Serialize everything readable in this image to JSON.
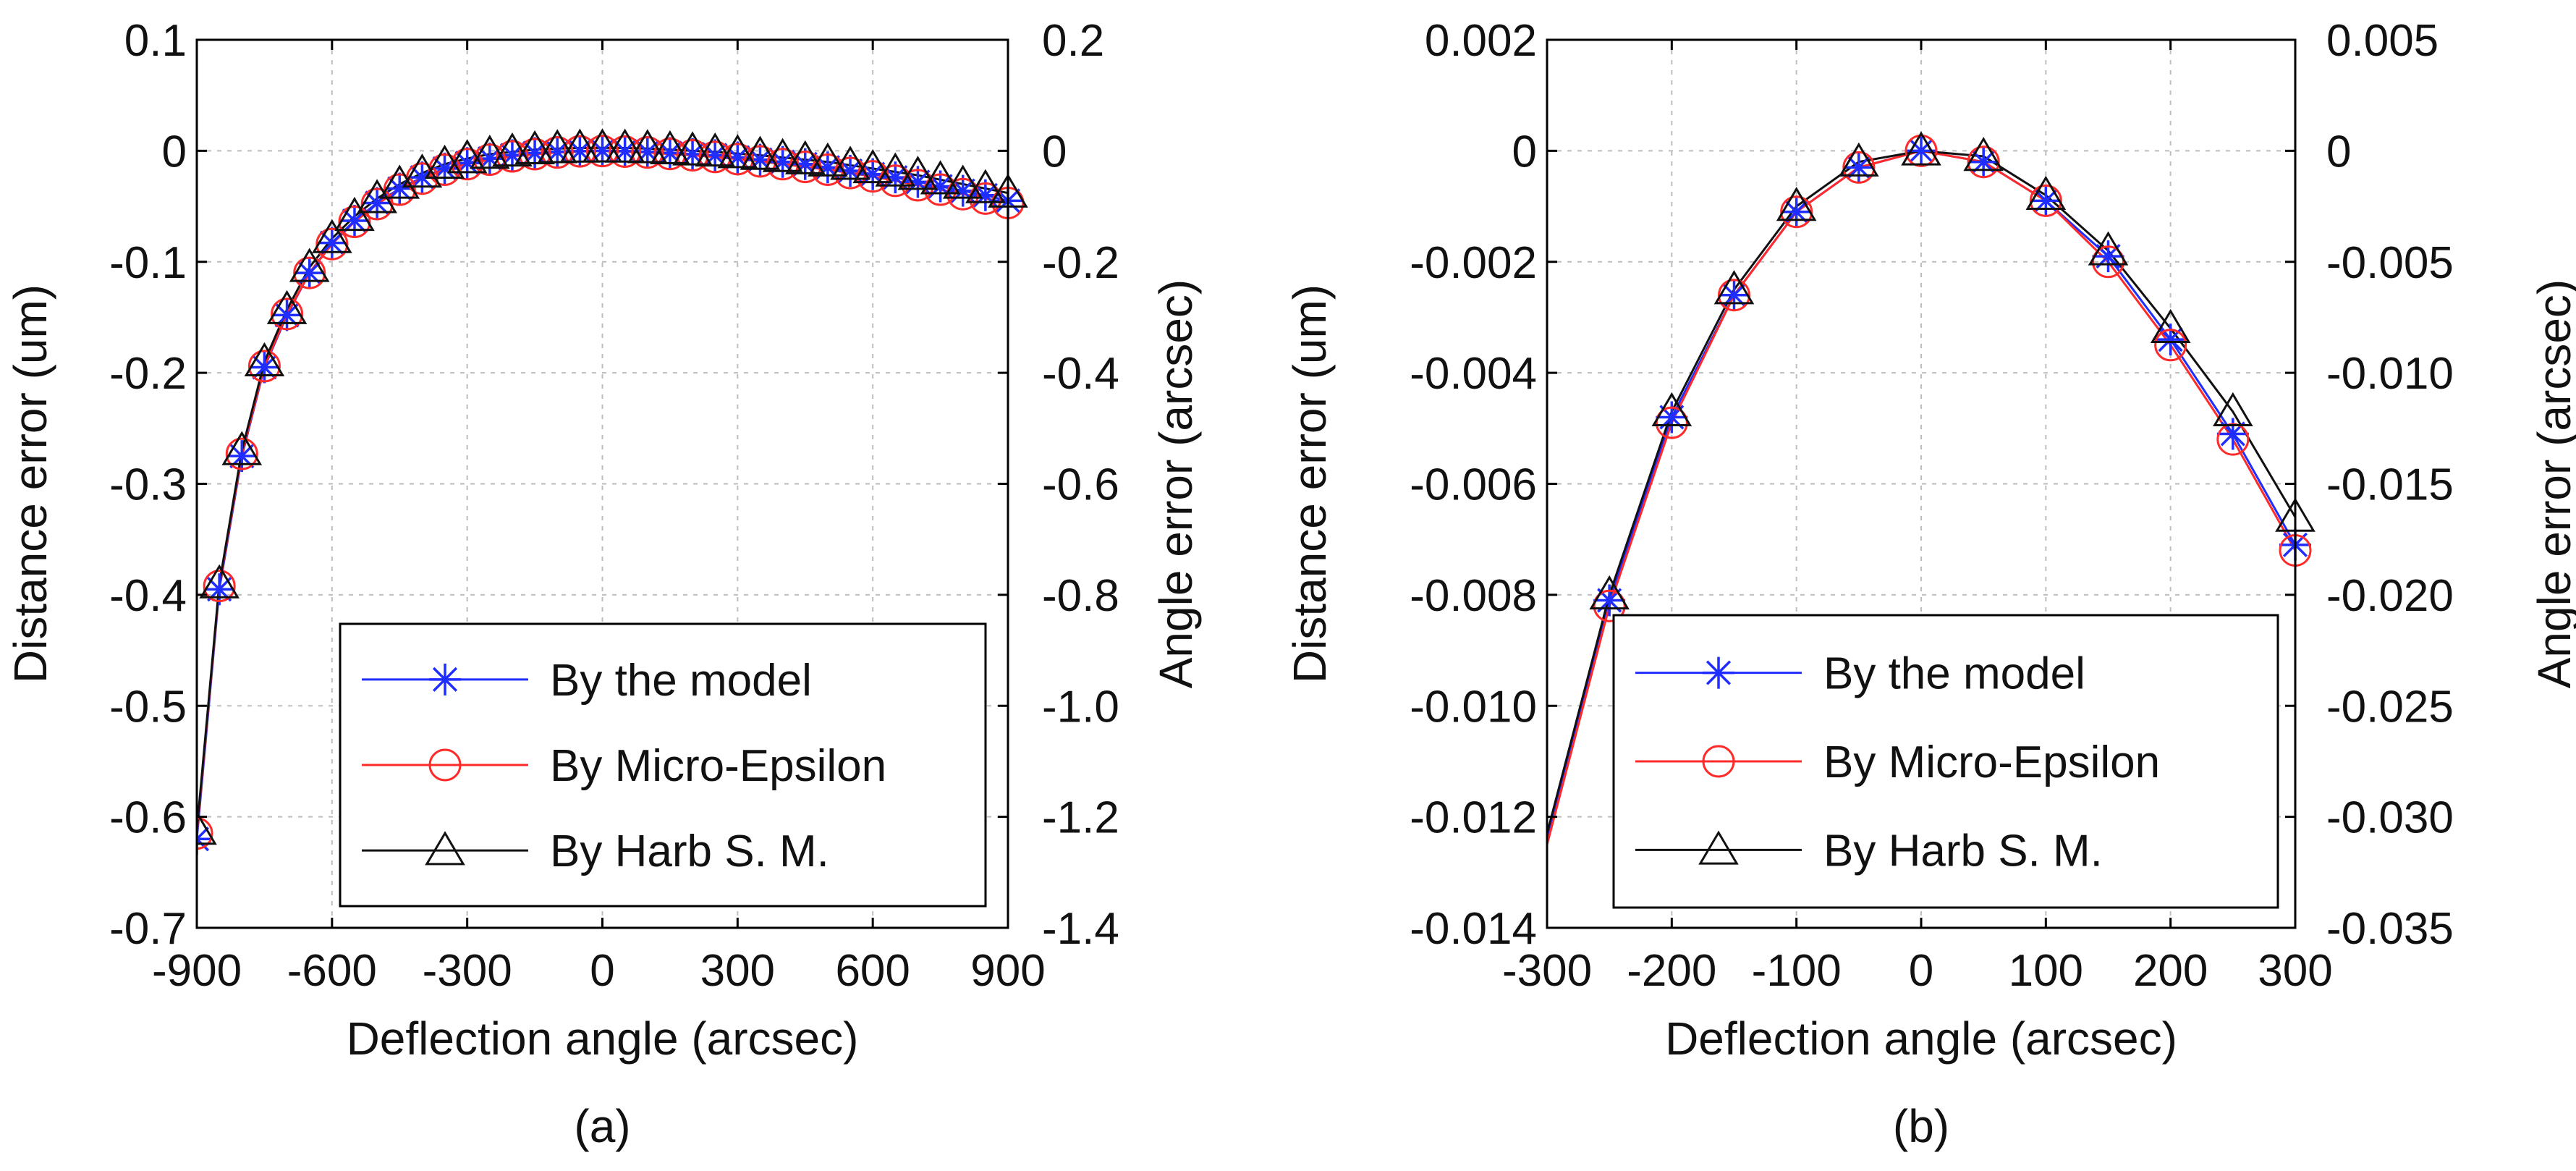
{
  "chart_data": [
    {
      "type": "line",
      "caption": "(a)",
      "xlabel": "Deflection angle (arcsec)",
      "ylabel": "Distance error (um)",
      "y2label": "Angle error (arcsec)",
      "xlim": [
        -900,
        900
      ],
      "ylim": [
        -0.7,
        0.1
      ],
      "y2lim": [
        -1.4,
        0.2
      ],
      "xticks": [
        -900,
        -600,
        -300,
        0,
        300,
        600,
        900
      ],
      "xtick_labels": [
        "-900",
        "-600",
        "-300",
        "0",
        "300",
        "600",
        "900"
      ],
      "yticks": [
        0.1,
        0,
        -0.1,
        -0.2,
        -0.3,
        -0.4,
        -0.5,
        -0.6,
        -0.7
      ],
      "ytick_labels": [
        "0.1",
        "0",
        "-0.1",
        "-0.2",
        "-0.3",
        "-0.4",
        "-0.5",
        "-0.6",
        "-0.7"
      ],
      "y2ticks": [
        0.2,
        0,
        -0.2,
        -0.4,
        -0.6,
        -0.8,
        -1.0,
        -1.2,
        -1.4
      ],
      "y2tick_labels": [
        "0.2",
        "0",
        "-0.2",
        "-0.4",
        "-0.6",
        "-0.8",
        "-1.0",
        "-1.2",
        "-1.4"
      ],
      "grid": true,
      "legend_position": "bottom-right",
      "x": [
        -900,
        -850,
        -800,
        -750,
        -700,
        -650,
        -600,
        -550,
        -500,
        -450,
        -400,
        -350,
        -300,
        -250,
        -200,
        -150,
        -100,
        -50,
        0,
        50,
        100,
        150,
        200,
        250,
        300,
        350,
        400,
        450,
        500,
        550,
        600,
        650,
        700,
        750,
        800,
        850,
        900
      ],
      "series": [
        {
          "name": "By the model",
          "color": "#1f2dff",
          "marker": "star",
          "values": [
            -0.62,
            -0.395,
            -0.275,
            -0.195,
            -0.148,
            -0.11,
            -0.083,
            -0.063,
            -0.047,
            -0.034,
            -0.024,
            -0.016,
            -0.011,
            -0.007,
            -0.004,
            -0.002,
            -0.001,
            -0.0003,
            0,
            -0.0003,
            -0.001,
            -0.002,
            -0.003,
            -0.004,
            -0.006,
            -0.008,
            -0.01,
            -0.012,
            -0.015,
            -0.018,
            -0.021,
            -0.024,
            -0.028,
            -0.032,
            -0.036,
            -0.04,
            -0.045
          ]
        },
        {
          "name": "By Micro-Epsilon",
          "color": "#ff2a2a",
          "marker": "circle",
          "values": [
            -0.615,
            -0.392,
            -0.273,
            -0.194,
            -0.147,
            -0.11,
            -0.084,
            -0.064,
            -0.048,
            -0.035,
            -0.025,
            -0.017,
            -0.012,
            -0.008,
            -0.005,
            -0.003,
            -0.0015,
            -0.0005,
            -0.0002,
            -0.0007,
            -0.0015,
            -0.0028,
            -0.004,
            -0.0055,
            -0.0075,
            -0.0095,
            -0.012,
            -0.0145,
            -0.017,
            -0.02,
            -0.023,
            -0.027,
            -0.031,
            -0.035,
            -0.039,
            -0.043,
            -0.047
          ]
        },
        {
          "name": "By Harb S. M.",
          "color": "#111111",
          "marker": "triangle",
          "values": [
            -0.612,
            -0.39,
            -0.27,
            -0.19,
            -0.143,
            -0.105,
            -0.079,
            -0.059,
            -0.043,
            -0.03,
            -0.02,
            -0.012,
            -0.007,
            -0.003,
            -0.001,
            0.001,
            0.002,
            0.0025,
            0.0027,
            0.0025,
            0.002,
            0.001,
            0,
            -0.001,
            -0.0025,
            -0.004,
            -0.006,
            -0.008,
            -0.01,
            -0.013,
            -0.016,
            -0.019,
            -0.022,
            -0.026,
            -0.03,
            -0.034,
            -0.038
          ]
        }
      ]
    },
    {
      "type": "line",
      "caption": "(b)",
      "xlabel": "Deflection angle (arcsec)",
      "ylabel": "Distance error (um)",
      "y2label": "Angle error (arcsec)",
      "xlim": [
        -300,
        300
      ],
      "ylim": [
        -0.014,
        0.002
      ],
      "y2lim": [
        -0.035,
        0.005
      ],
      "xticks": [
        -300,
        -200,
        -100,
        0,
        100,
        200,
        300
      ],
      "xtick_labels": [
        "-300",
        "-200",
        "-100",
        "0",
        "100",
        "200",
        "300"
      ],
      "yticks": [
        0.002,
        0,
        -0.002,
        -0.004,
        -0.006,
        -0.008,
        -0.01,
        -0.012,
        -0.014
      ],
      "ytick_labels": [
        "0.002",
        "0",
        "-0.002",
        "-0.004",
        "-0.006",
        "-0.008",
        "-0.010",
        "-0.012",
        "-0.014"
      ],
      "y2ticks": [
        0.005,
        0,
        -0.005,
        -0.01,
        -0.015,
        -0.02,
        -0.025,
        -0.03,
        -0.035
      ],
      "y2tick_labels": [
        "0.005",
        "0",
        "-0.005",
        "-0.010",
        "-0.015",
        "-0.020",
        "-0.025",
        "-0.030",
        "-0.035"
      ],
      "grid": true,
      "legend_position": "bottom-right",
      "x": [
        -300,
        -250,
        -200,
        -150,
        -100,
        -50,
        0,
        50,
        100,
        150,
        200,
        250,
        300
      ],
      "marker_x": [
        -250,
        -200,
        -150,
        -100,
        -50,
        0,
        50,
        100,
        150,
        200,
        250,
        300
      ],
      "series": [
        {
          "name": "By the model",
          "color": "#1f2dff",
          "marker": "star",
          "values": [
            -0.0124,
            -0.0081,
            -0.0048,
            -0.0026,
            -0.0011,
            -0.0003,
            0,
            -0.0002,
            -0.0009,
            -0.0019,
            -0.0034,
            -0.0051,
            -0.0071
          ]
        },
        {
          "name": "By Micro-Epsilon",
          "color": "#ff2a2a",
          "marker": "circle",
          "values": [
            -0.0125,
            -0.0082,
            -0.0049,
            -0.0026,
            -0.0011,
            -0.0003,
            0,
            -0.0002,
            -0.0009,
            -0.002,
            -0.0035,
            -0.0052,
            -0.0072
          ]
        },
        {
          "name": "By Harb S. M.",
          "color": "#111111",
          "marker": "triangle",
          "values": [
            -0.0123,
            -0.008,
            -0.0047,
            -0.0025,
            -0.001,
            -0.0002,
            0,
            -0.0001,
            -0.0008,
            -0.0018,
            -0.0032,
            -0.0047,
            -0.0066
          ]
        }
      ]
    }
  ]
}
